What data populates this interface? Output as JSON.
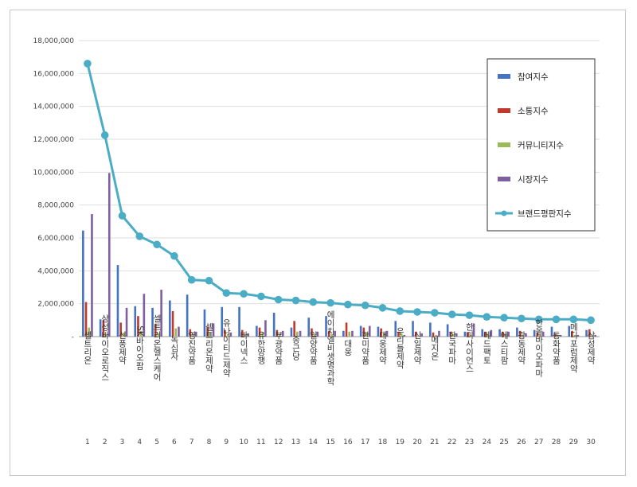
{
  "chart_data": {
    "type": "bar",
    "categories": [
      "셀트리온",
      "삼성바이오로직스",
      "신풍제약",
      "SK바이오팜",
      "셀트리온헬스케어",
      "녹십자",
      "영진약품",
      "셀트리온제약",
      "유나이티드제약",
      "바이넥스",
      "유한양행",
      "부광약품",
      "종근당",
      "일양약품",
      "에이치엘비생명과학",
      "대웅",
      "한미약품",
      "대웅제약",
      "우리들제약",
      "신일제약",
      "메지온",
      "한국파마",
      "한미사이언스",
      "메드팩토",
      "에스티팜",
      "광동제약",
      "한올바이오파마",
      "동화약품",
      "메디포럼제약",
      "삼성제약"
    ],
    "ranks": [
      "1",
      "2",
      "3",
      "4",
      "5",
      "6",
      "7",
      "8",
      "9",
      "10",
      "11",
      "12",
      "13",
      "14",
      "15",
      "16",
      "17",
      "18",
      "19",
      "20",
      "21",
      "22",
      "23",
      "24",
      "25",
      "26",
      "27",
      "28",
      "29",
      "30"
    ],
    "series": [
      {
        "name": "참여지수",
        "kind": "bar",
        "color": "#4472c4",
        "values": [
          6450000,
          1050000,
          4350000,
          1850000,
          1750000,
          2200000,
          2550000,
          1650000,
          1800000,
          1800000,
          650000,
          1450000,
          550000,
          1150000,
          1250000,
          350000,
          650000,
          600000,
          950000,
          950000,
          850000,
          750000,
          300000,
          450000,
          450000,
          550000,
          400000,
          600000,
          650000,
          400000
        ]
      },
      {
        "name": "소통지수",
        "kind": "bar",
        "color": "#c0392b",
        "values": [
          2100000,
          1000000,
          850000,
          1250000,
          750000,
          1550000,
          450000,
          600000,
          400000,
          400000,
          550000,
          400000,
          950000,
          500000,
          350000,
          850000,
          550000,
          500000,
          300000,
          300000,
          250000,
          300000,
          250000,
          300000,
          300000,
          350000,
          250000,
          200000,
          350000,
          450000
        ]
      },
      {
        "name": "커뮤니티지수",
        "kind": "bar",
        "color": "#9bbb59",
        "values": [
          550000,
          150000,
          250000,
          350000,
          200000,
          500000,
          100000,
          250000,
          150000,
          150000,
          250000,
          150000,
          300000,
          150000,
          150000,
          300000,
          250000,
          250000,
          200000,
          50000,
          100000,
          150000,
          100000,
          100000,
          150000,
          100000,
          100000,
          100000,
          100000,
          100000
        ]
      },
      {
        "name": "시장지수",
        "kind": "bar",
        "color": "#7f5f9f",
        "values": [
          7450000,
          9950000,
          1750000,
          2600000,
          2850000,
          600000,
          300000,
          800000,
          250000,
          200000,
          1000000,
          350000,
          350000,
          300000,
          350000,
          350000,
          650000,
          350000,
          100000,
          200000,
          350000,
          200000,
          800000,
          400000,
          300000,
          200000,
          300000,
          100000,
          100000,
          100000
        ]
      },
      {
        "name": "브랜드평판지수",
        "kind": "line",
        "color": "#4bacc6",
        "values": [
          16600000,
          12250000,
          7350000,
          6100000,
          5600000,
          4900000,
          3450000,
          3400000,
          2650000,
          2600000,
          2450000,
          2250000,
          2200000,
          2100000,
          2050000,
          1950000,
          1900000,
          1750000,
          1550000,
          1500000,
          1450000,
          1350000,
          1300000,
          1200000,
          1150000,
          1100000,
          1050000,
          1050000,
          1050000,
          1000000
        ]
      }
    ],
    "y_ticks": [
      "-",
      "2,000,000",
      "4,000,000",
      "6,000,000",
      "8,000,000",
      "10,000,000",
      "12,000,000",
      "14,000,000",
      "16,000,000",
      "18,000,000"
    ],
    "ylim": [
      0,
      18000000
    ],
    "grid": true,
    "legend_position": "right"
  }
}
